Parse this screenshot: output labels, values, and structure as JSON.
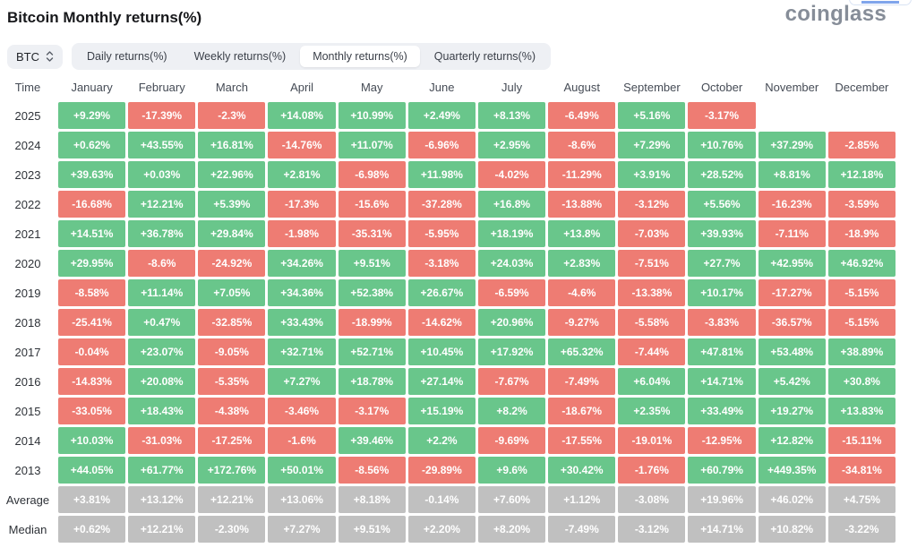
{
  "page": {
    "title": "Bitcoin Monthly returns(%)",
    "brand": "coinglass"
  },
  "toolbar": {
    "coin_selector": {
      "value": "BTC"
    },
    "tabs": [
      {
        "label": "Daily returns(%)",
        "active": false
      },
      {
        "label": "Weekly returns(%)",
        "active": false
      },
      {
        "label": "Monthly returns(%)",
        "active": true
      },
      {
        "label": "Quarterly returns(%)",
        "active": false
      }
    ]
  },
  "colors": {
    "positive": "#69c68b",
    "negative": "#ee7c73",
    "neutral": "#c0c0c0"
  },
  "chart_data": {
    "type": "heatmap",
    "title": "Bitcoin Monthly returns(%)",
    "columns": [
      "Time",
      "January",
      "February",
      "March",
      "April",
      "May",
      "June",
      "July",
      "August",
      "September",
      "October",
      "November",
      "December"
    ],
    "rows": [
      {
        "label": "2025",
        "summary": false,
        "values": [
          "+9.29%",
          "-17.39%",
          "-2.3%",
          "+14.08%",
          "+10.99%",
          "+2.49%",
          "+8.13%",
          "-6.49%",
          "+5.16%",
          "-3.17%",
          null,
          null
        ]
      },
      {
        "label": "2024",
        "summary": false,
        "values": [
          "+0.62%",
          "+43.55%",
          "+16.81%",
          "-14.76%",
          "+11.07%",
          "-6.96%",
          "+2.95%",
          "-8.6%",
          "+7.29%",
          "+10.76%",
          "+37.29%",
          "-2.85%"
        ]
      },
      {
        "label": "2023",
        "summary": false,
        "values": [
          "+39.63%",
          "+0.03%",
          "+22.96%",
          "+2.81%",
          "-6.98%",
          "+11.98%",
          "-4.02%",
          "-11.29%",
          "+3.91%",
          "+28.52%",
          "+8.81%",
          "+12.18%"
        ]
      },
      {
        "label": "2022",
        "summary": false,
        "values": [
          "-16.68%",
          "+12.21%",
          "+5.39%",
          "-17.3%",
          "-15.6%",
          "-37.28%",
          "+16.8%",
          "-13.88%",
          "-3.12%",
          "+5.56%",
          "-16.23%",
          "-3.59%"
        ]
      },
      {
        "label": "2021",
        "summary": false,
        "values": [
          "+14.51%",
          "+36.78%",
          "+29.84%",
          "-1.98%",
          "-35.31%",
          "-5.95%",
          "+18.19%",
          "+13.8%",
          "-7.03%",
          "+39.93%",
          "-7.11%",
          "-18.9%"
        ]
      },
      {
        "label": "2020",
        "summary": false,
        "values": [
          "+29.95%",
          "-8.6%",
          "-24.92%",
          "+34.26%",
          "+9.51%",
          "-3.18%",
          "+24.03%",
          "+2.83%",
          "-7.51%",
          "+27.7%",
          "+42.95%",
          "+46.92%"
        ]
      },
      {
        "label": "2019",
        "summary": false,
        "values": [
          "-8.58%",
          "+11.14%",
          "+7.05%",
          "+34.36%",
          "+52.38%",
          "+26.67%",
          "-6.59%",
          "-4.6%",
          "-13.38%",
          "+10.17%",
          "-17.27%",
          "-5.15%"
        ]
      },
      {
        "label": "2018",
        "summary": false,
        "values": [
          "-25.41%",
          "+0.47%",
          "-32.85%",
          "+33.43%",
          "-18.99%",
          "-14.62%",
          "+20.96%",
          "-9.27%",
          "-5.58%",
          "-3.83%",
          "-36.57%",
          "-5.15%"
        ]
      },
      {
        "label": "2017",
        "summary": false,
        "values": [
          "-0.04%",
          "+23.07%",
          "-9.05%",
          "+32.71%",
          "+52.71%",
          "+10.45%",
          "+17.92%",
          "+65.32%",
          "-7.44%",
          "+47.81%",
          "+53.48%",
          "+38.89%"
        ]
      },
      {
        "label": "2016",
        "summary": false,
        "values": [
          "-14.83%",
          "+20.08%",
          "-5.35%",
          "+7.27%",
          "+18.78%",
          "+27.14%",
          "-7.67%",
          "-7.49%",
          "+6.04%",
          "+14.71%",
          "+5.42%",
          "+30.8%"
        ]
      },
      {
        "label": "2015",
        "summary": false,
        "values": [
          "-33.05%",
          "+18.43%",
          "-4.38%",
          "-3.46%",
          "-3.17%",
          "+15.19%",
          "+8.2%",
          "-18.67%",
          "+2.35%",
          "+33.49%",
          "+19.27%",
          "+13.83%"
        ]
      },
      {
        "label": "2014",
        "summary": false,
        "values": [
          "+10.03%",
          "-31.03%",
          "-17.25%",
          "-1.6%",
          "+39.46%",
          "+2.2%",
          "-9.69%",
          "-17.55%",
          "-19.01%",
          "-12.95%",
          "+12.82%",
          "-15.11%"
        ]
      },
      {
        "label": "2013",
        "summary": false,
        "values": [
          "+44.05%",
          "+61.77%",
          "+172.76%",
          "+50.01%",
          "-8.56%",
          "-29.89%",
          "+9.6%",
          "+30.42%",
          "-1.76%",
          "+60.79%",
          "+449.35%",
          "-34.81%"
        ]
      },
      {
        "label": "Average",
        "summary": true,
        "values": [
          "+3.81%",
          "+13.12%",
          "+12.21%",
          "+13.06%",
          "+8.18%",
          "-0.14%",
          "+7.60%",
          "+1.12%",
          "-3.08%",
          "+19.96%",
          "+46.02%",
          "+4.75%"
        ]
      },
      {
        "label": "Median",
        "summary": true,
        "values": [
          "+0.62%",
          "+12.21%",
          "-2.30%",
          "+7.27%",
          "+9.51%",
          "+2.20%",
          "+8.20%",
          "-7.49%",
          "-3.12%",
          "+14.71%",
          "+10.82%",
          "-3.22%"
        ]
      }
    ]
  }
}
